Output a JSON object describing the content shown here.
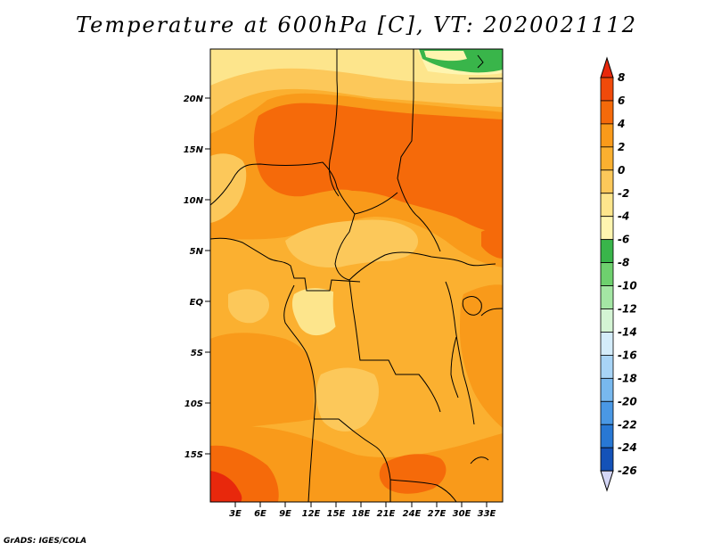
{
  "title": "Temperature at 600hPa [C], VT: 2020021112",
  "credit": "GrADS: IGES/COLA",
  "map": {
    "lat_ticks": [
      "20N",
      "15N",
      "10N",
      "5N",
      "EQ",
      "5S",
      "10S",
      "15S"
    ],
    "lon_ticks": [
      "3E",
      "6E",
      "9E",
      "12E",
      "15E",
      "18E",
      "21E",
      "24E",
      "27E",
      "30E",
      "33E"
    ]
  },
  "colorbar": {
    "labels": [
      "8",
      "6",
      "4",
      "2",
      "0",
      "-2",
      "-4",
      "-6",
      "-8",
      "-10",
      "-12",
      "-14",
      "-16",
      "-18",
      "-20",
      "-22",
      "-24",
      "-26"
    ],
    "colors": [
      "#e8280c",
      "#f04a0a",
      "#f56a0a",
      "#f99a1a",
      "#fbb030",
      "#fcc85a",
      "#fde58c",
      "#fef5b0",
      "#39b54a",
      "#6ed06e",
      "#a4e6a4",
      "#d4f4d4",
      "#d4ecfa",
      "#a8d4f6",
      "#78b8ee",
      "#4a98e4",
      "#2878d4",
      "#1452b8",
      "#0a2a8a",
      "#08155c",
      "#d4d6f6"
    ]
  }
}
